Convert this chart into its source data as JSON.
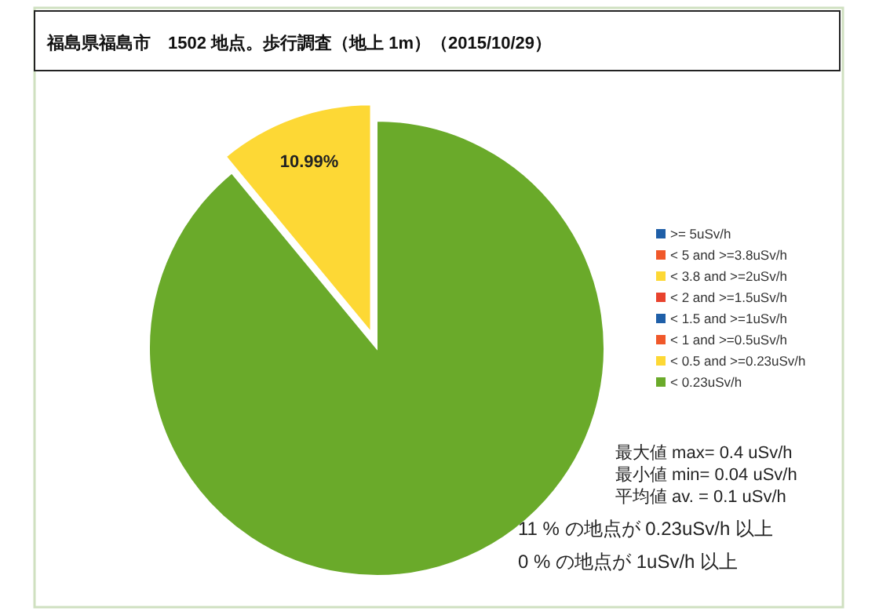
{
  "chart_data": {
    "type": "pie",
    "title": "福島県福島市　1502 地点。歩行調査（地上 1m）（2015/10/29）",
    "categories": [
      ">= 5uSv/h",
      "< 5 and >=3.8uSv/h",
      "< 3.8 and >=2uSv/h",
      "< 2 and >=1.5uSv/h",
      "< 1.5 and >=1uSv/h",
      "< 1 and >=0.5uSv/h",
      "< 0.5 and >=0.23uSv/h",
      "< 0.23uSv/h"
    ],
    "values": [
      0,
      0,
      0,
      0,
      0,
      0,
      10.99,
      89.01
    ],
    "colors": [
      "#1f5fa8",
      "#f0582a",
      "#fdd835",
      "#e8432e",
      "#1f5fa8",
      "#f0582a",
      "#fdd835",
      "#6aaa2a"
    ],
    "value_labels": [
      null,
      null,
      null,
      null,
      null,
      null,
      "10.99%",
      null
    ],
    "legend": "right",
    "annotations": [
      "最大値 max= 0.4 uSv/h",
      "最小値 min= 0.04 uSv/h",
      "平均値 av. =  0.1 uSv/h",
      "11 %  の地点が 0.23uSv/h 以上",
      "0 %  の地点が 1uSv/h 以上"
    ]
  }
}
